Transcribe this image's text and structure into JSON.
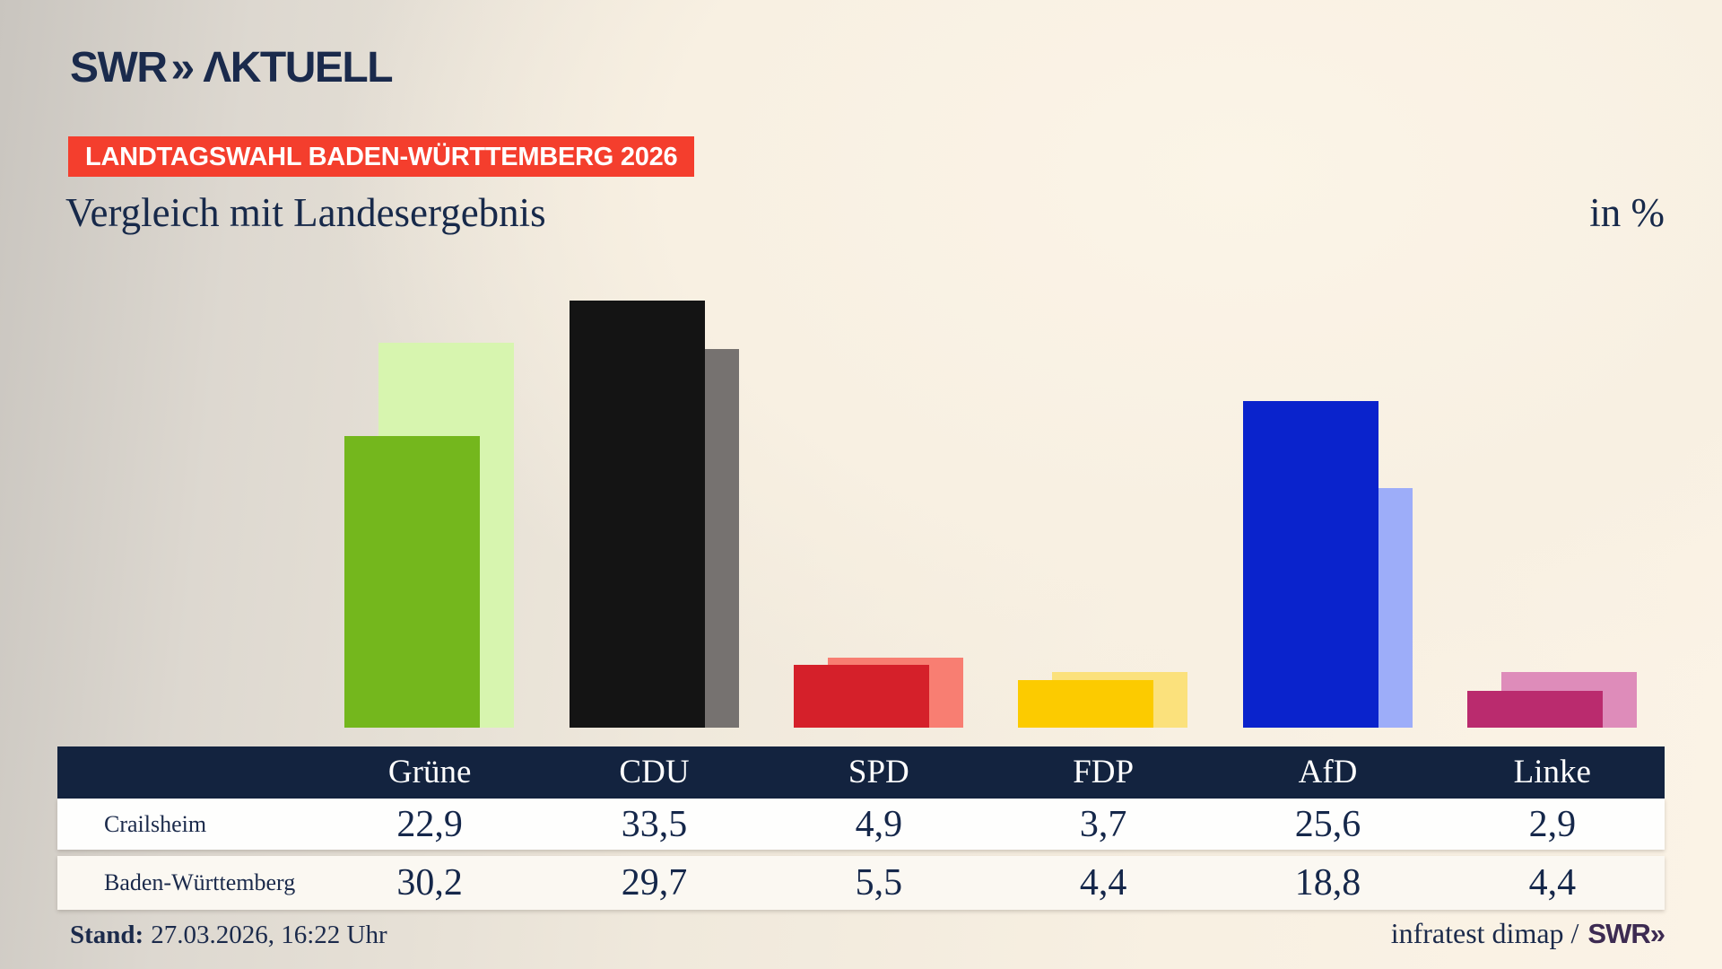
{
  "header": {
    "logo_swr": "SWR",
    "logo_chevrons": "»",
    "logo_aktuell": "ΛKTUELL"
  },
  "banner": {
    "label": "LANDTAGSWAHL BADEN-WÜRTTEMBERG 2026"
  },
  "title": {
    "heading": "Vergleich mit Landesergebnis",
    "unit": "in %"
  },
  "chart_data": {
    "type": "bar",
    "title": "Vergleich mit Landesergebnis",
    "unit": "in %",
    "categories": [
      "Grüne",
      "CDU",
      "SPD",
      "FDP",
      "AfD",
      "Linke"
    ],
    "series": [
      {
        "name": "Crailsheim",
        "values": [
          22.9,
          33.5,
          4.9,
          3.7,
          25.6,
          2.9
        ],
        "display": [
          "22,9",
          "33,5",
          "4,9",
          "3,7",
          "25,6",
          "2,9"
        ],
        "colors": [
          "#74b71d",
          "#141414",
          "#d5202a",
          "#fccb00",
          "#0a23cc",
          "#ba2b6e"
        ]
      },
      {
        "name": "Baden-Württemberg",
        "values": [
          30.2,
          29.7,
          5.5,
          4.4,
          18.8,
          4.4
        ],
        "display": [
          "30,2",
          "29,7",
          "5,5",
          "4,4",
          "18,8",
          "4,4"
        ],
        "colors": [
          "#d7f5af",
          "#767270",
          "#f87e72",
          "#fbe17c",
          "#9dadf9",
          "#de8cba"
        ]
      }
    ],
    "ylim": [
      0,
      35
    ],
    "grid": false,
    "axes_labeled": false,
    "legend_position": "table-rows",
    "bar_style": "overlapping pairs: front-left bar = Crailsheim, back-right offset bar = Baden-Württemberg"
  },
  "footer": {
    "stand_label": "Stand:",
    "stand_value": "27.03.2026, 16:22 Uhr",
    "source": "infratest dimap /",
    "source_logo": "SWR»"
  },
  "colors": {
    "banner_red": "#f43e2d",
    "navy_text": "#17294a",
    "table_header_navy": "#13233f",
    "background_cream": "#faf2e4",
    "background_gray": "#c9c5bf",
    "footer_swr_purple": "#3d2b52"
  }
}
